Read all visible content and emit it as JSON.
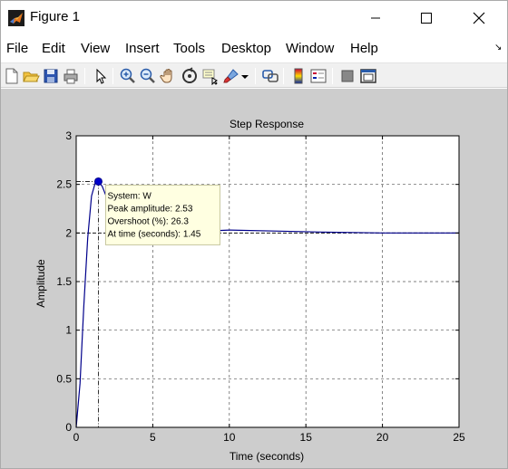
{
  "window": {
    "title": "Figure 1"
  },
  "menu": {
    "items": [
      "File",
      "Edit",
      "View",
      "Insert",
      "Tools",
      "Desktop",
      "Window",
      "Help"
    ]
  },
  "toolbar": {
    "buttons": [
      "new-figure-icon",
      "open-file-icon",
      "save-icon",
      "print-icon",
      "edit-plot-arrow-icon",
      "zoom-in-icon",
      "zoom-out-icon",
      "pan-hand-icon",
      "rotate-3d-icon",
      "data-cursor-icon",
      "brush-icon",
      "brush-dropdown-icon",
      "link-plot-icon",
      "colorbar-icon",
      "legend-icon",
      "hide-plot-tools-icon",
      "show-plot-tools-icon"
    ]
  },
  "chart_data": {
    "type": "line",
    "title": "Step Response",
    "xlabel": "Time (seconds)",
    "ylabel": "Amplitude",
    "xlim": [
      0,
      25
    ],
    "ylim": [
      0,
      3
    ],
    "xticks": [
      "0",
      "5",
      "10",
      "15",
      "20",
      "25"
    ],
    "yticks": [
      "0",
      "0.5",
      "1",
      "1.5",
      "2",
      "2.5",
      "3"
    ],
    "grid": true,
    "series": [
      {
        "name": "W",
        "color": "#00008b",
        "x": [
          0,
          0.25,
          0.5,
          0.75,
          1.0,
          1.25,
          1.45,
          1.7,
          2.0,
          2.5,
          3,
          4,
          5,
          7,
          10,
          13,
          16,
          20,
          25
        ],
        "y": [
          0,
          0.45,
          1.25,
          1.95,
          2.38,
          2.52,
          2.53,
          2.48,
          2.36,
          2.18,
          2.08,
          2.02,
          2.0,
          2.01,
          2.03,
          2.02,
          2.01,
          2.0,
          2.0
        ]
      }
    ],
    "peak": {
      "x": 1.45,
      "y": 2.53
    },
    "steady_state": 2.0,
    "datatip": {
      "lines": [
        "System: W",
        "Peak amplitude: 2.53",
        "Overshoot (%): 26.3",
        "At time (seconds): 1.45"
      ]
    }
  }
}
